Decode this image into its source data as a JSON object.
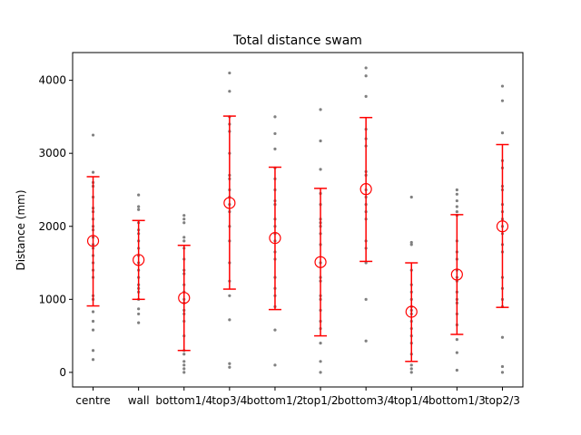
{
  "chart_data": {
    "type": "scatter",
    "title": "Total distance swam",
    "xlabel": "",
    "ylabel": "Distance (mm)",
    "categories": [
      "centre",
      "wall",
      "bottom1/4",
      "top3/4",
      "bottom1/2",
      "top1/2",
      "bottom3/4",
      "top1/4",
      "bottom1/3",
      "top2/3"
    ],
    "ylim": [
      -200,
      4380
    ],
    "yticks": [
      0,
      1000,
      2000,
      3000,
      4000
    ],
    "grid": false,
    "colors": {
      "points": "#808080",
      "error": "#ff0000",
      "mean_marker": "#ff0000"
    },
    "series": [
      {
        "category": "centre",
        "mean": 1800,
        "low": 910,
        "high": 2680,
        "points": [
          3250,
          2740,
          2600,
          2550,
          2400,
          2250,
          2200,
          2100,
          2000,
          1950,
          1850,
          1750,
          1700,
          1600,
          1500,
          1400,
          1300,
          1050,
          1000,
          830,
          700,
          580,
          300,
          175
        ]
      },
      {
        "category": "wall",
        "mean": 1540,
        "low": 1000,
        "high": 2080,
        "points": [
          2430,
          2270,
          2230,
          2050,
          1950,
          1900,
          1800,
          1700,
          1600,
          1500,
          1400,
          1300,
          1200,
          1150,
          1100,
          1000,
          870,
          800,
          680
        ]
      },
      {
        "category": "bottom1/4",
        "mean": 1020,
        "low": 300,
        "high": 1740,
        "points": [
          2150,
          2100,
          2050,
          1850,
          1800,
          1700,
          1550,
          1400,
          1350,
          1200,
          1100,
          1000,
          950,
          850,
          800,
          700,
          500,
          300,
          250,
          150,
          100,
          50,
          0
        ]
      },
      {
        "category": "top3/4",
        "mean": 2320,
        "low": 1140,
        "high": 3510,
        "points": [
          4100,
          3850,
          3500,
          3400,
          3300,
          3000,
          2700,
          2650,
          2500,
          2400,
          2300,
          2200,
          2000,
          1800,
          1500,
          1250,
          1050,
          720,
          120,
          70
        ]
      },
      {
        "category": "bottom1/2",
        "mean": 1840,
        "low": 860,
        "high": 2810,
        "points": [
          3500,
          3270,
          3060,
          2800,
          2650,
          2500,
          2350,
          2300,
          2100,
          2000,
          1900,
          1800,
          1650,
          1550,
          1300,
          1150,
          1050,
          900,
          580,
          100
        ]
      },
      {
        "category": "top1/2",
        "mean": 1510,
        "low": 500,
        "high": 2520,
        "points": [
          3600,
          3170,
          2780,
          2450,
          2300,
          2100,
          2050,
          2000,
          1900,
          1750,
          1500,
          1300,
          1250,
          1050,
          1000,
          850,
          700,
          600,
          400,
          150,
          0
        ]
      },
      {
        "category": "bottom3/4",
        "mean": 2510,
        "low": 1520,
        "high": 3490,
        "points": [
          4170,
          4060,
          3780,
          3330,
          3200,
          3100,
          2750,
          2700,
          2500,
          2400,
          2300,
          2200,
          2100,
          1800,
          1700,
          1500,
          1000,
          430
        ]
      },
      {
        "category": "top1/4",
        "mean": 830,
        "low": 150,
        "high": 1500,
        "points": [
          2400,
          1780,
          1750,
          1400,
          1200,
          1100,
          1000,
          900,
          850,
          800,
          700,
          600,
          500,
          400,
          250,
          100,
          50,
          0
        ]
      },
      {
        "category": "bottom1/3",
        "mean": 1340,
        "low": 520,
        "high": 2160,
        "points": [
          2500,
          2440,
          2350,
          2270,
          2200,
          2150,
          1800,
          1650,
          1550,
          1400,
          1300,
          1250,
          1100,
          1000,
          950,
          800,
          650,
          450,
          270,
          30
        ]
      },
      {
        "category": "top2/3",
        "mean": 2000,
        "low": 890,
        "high": 3120,
        "points": [
          3920,
          3720,
          3280,
          2900,
          2800,
          2550,
          2500,
          2300,
          2200,
          2100,
          2000,
          1900,
          1750,
          1650,
          1300,
          1150,
          1000,
          900,
          480,
          80,
          0
        ]
      }
    ]
  }
}
